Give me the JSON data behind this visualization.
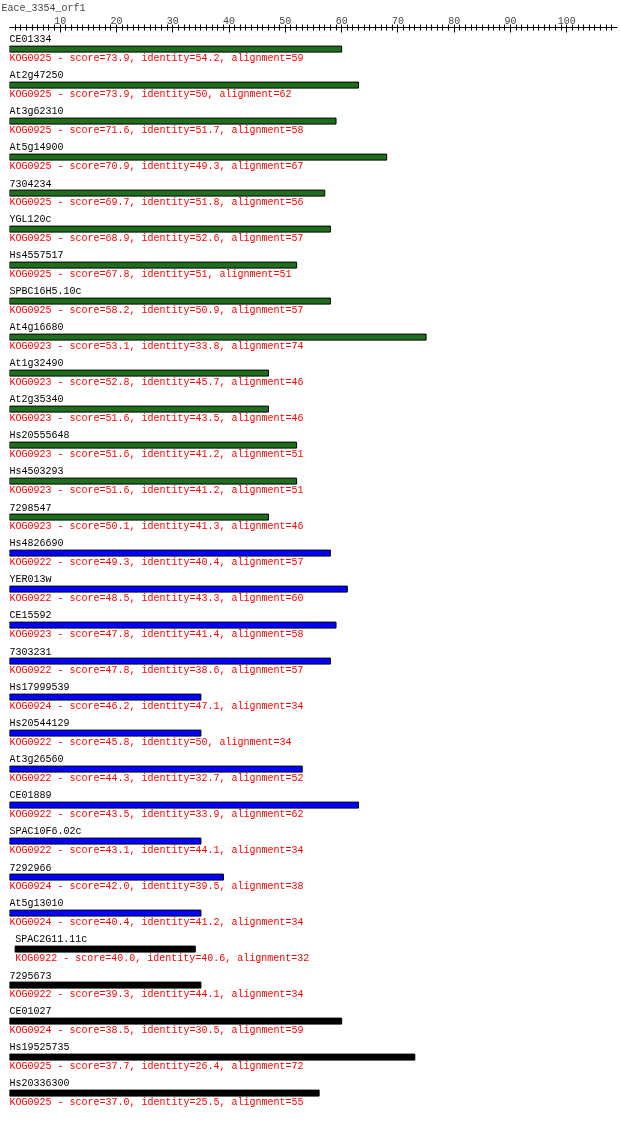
{
  "chart_data": {
    "type": "bar",
    "orientation": "horizontal",
    "title": "Eace_3354_orf1",
    "categories": [
      "CE01334",
      "At2g47250",
      "At3g62310",
      "At5g14900",
      "7304234",
      "YGL120c",
      "Hs4557517",
      "SPBC16H5.10c",
      "At4g16680",
      "At1g32490",
      "At2g35340",
      "Hs20555648",
      "Hs4503293",
      "7298547",
      "Hs4826690",
      "YER013w",
      "CE15592",
      "7303231",
      "Hs17999539",
      "Hs20544129",
      "At3g26560",
      "CE01889",
      "SPAC10F6.02c",
      "7292966",
      "At5g13010",
      "SPAC2G11.11c",
      "7295673",
      "CE01027",
      "Hs19525735",
      "Hs20336300"
    ],
    "base": [
      1,
      1,
      1,
      1,
      1,
      1,
      1,
      1,
      1,
      1,
      1,
      1,
      1,
      1,
      1,
      1,
      1,
      1,
      1,
      1,
      1,
      1,
      1,
      1,
      1,
      2,
      1,
      1,
      1,
      1
    ],
    "values": [
      59,
      62,
      58,
      67,
      56,
      57,
      51,
      57,
      74,
      46,
      46,
      51,
      51,
      46,
      57,
      60,
      58,
      57,
      34,
      34,
      52,
      62,
      34,
      38,
      34,
      32,
      34,
      59,
      72,
      55
    ],
    "colors": [
      "#1e6e1e",
      "#1e6e1e",
      "#1e6e1e",
      "#1e6e1e",
      "#1e6e1e",
      "#1e6e1e",
      "#1e6e1e",
      "#1e6e1e",
      "#1e6e1e",
      "#1e6e1e",
      "#1e6e1e",
      "#1e6e1e",
      "#1e6e1e",
      "#1e6e1e",
      "#0000ff",
      "#0000ff",
      "#0000ff",
      "#0000ff",
      "#0000ff",
      "#0000ff",
      "#0000ff",
      "#0000ff",
      "#0000ff",
      "#0000ff",
      "#0000ff",
      "#000000",
      "#000000",
      "#000000",
      "#000000",
      "#000000"
    ],
    "value_labels": [
      "KOG0925 - score=73.9, identity=54.2, alignment=59",
      "KOG0925 - score=73.9, identity=50, alignment=62",
      "KOG0925 - score=71.6, identity=51.7, alignment=58",
      "KOG0925 - score=70.9, identity=49.3, alignment=67",
      "KOG0925 - score=69.7, identity=51.8, alignment=56",
      "KOG0925 - score=68.9, identity=52.6, alignment=57",
      "KOG0925 - score=67.8, identity=51, alignment=51",
      "KOG0925 - score=58.2, identity=50.9, alignment=57",
      "KOG0923 - score=53.1, identity=33.8, alignment=74",
      "KOG0923 - score=52.8, identity=45.7, alignment=46",
      "KOG0923 - score=51.6, identity=43.5, alignment=46",
      "KOG0923 - score=51.6, identity=41.2, alignment=51",
      "KOG0923 - score=51.6, identity=41.2, alignment=51",
      "KOG0923 - score=50.1, identity=41.3, alignment=46",
      "KOG0922 - score=49.3, identity=40.4, alignment=57",
      "KOG0922 - score=48.5, identity=43.3, alignment=60",
      "KOG0923 - score=47.8, identity=41.4, alignment=58",
      "KOG0922 - score=47.8, identity=38.6, alignment=57",
      "KOG0924 - score=46.2, identity=47.1, alignment=34",
      "KOG0922 - score=45.8, identity=50, alignment=34",
      "KOG0922 - score=44.3, identity=32.7, alignment=52",
      "KOG0922 - score=43.5, identity=33.9, alignment=62",
      "KOG0922 - score=43.1, identity=44.1, alignment=34",
      "KOG0924 - score=42.0, identity=39.5, alignment=38",
      "KOG0924 - score=40.4, identity=41.2, alignment=34",
      "KOG0922 - score=40.0, identity=40.6, alignment=32",
      "KOG0922 - score=39.3, identity=44.1, alignment=34",
      "KOG0924 - score=38.5, identity=30.5, alignment=59",
      "KOG0925 - score=37.7, identity=26.4, alignment=72",
      "KOG0925 - score=37.0, identity=25.5, alignment=55"
    ],
    "xlim": [
      1,
      109
    ],
    "xticks": [
      {
        "value": 2,
        "label": null
      },
      {
        "value": 3,
        "label": null
      },
      {
        "value": 4,
        "label": null
      },
      {
        "value": 5,
        "label": null
      },
      {
        "value": 6,
        "label": null
      },
      {
        "value": 7,
        "label": null
      },
      {
        "value": 8,
        "label": null
      },
      {
        "value": 9,
        "label": null
      },
      10,
      {
        "value": 11,
        "label": null
      },
      {
        "value": 12,
        "label": null
      },
      {
        "value": 13,
        "label": null
      },
      {
        "value": 14,
        "label": null
      },
      {
        "value": 15,
        "label": null
      },
      {
        "value": 16,
        "label": null
      },
      {
        "value": 17,
        "label": null
      },
      {
        "value": 18,
        "label": null
      },
      {
        "value": 19,
        "label": null
      },
      20,
      {
        "value": 21,
        "label": null
      },
      {
        "value": 22,
        "label": null
      },
      {
        "value": 23,
        "label": null
      },
      {
        "value": 24,
        "label": null
      },
      {
        "value": 25,
        "label": null
      },
      {
        "value": 26,
        "label": null
      },
      {
        "value": 27,
        "label": null
      },
      {
        "value": 28,
        "label": null
      },
      {
        "value": 29,
        "label": null
      },
      30,
      {
        "value": 31,
        "label": null
      },
      {
        "value": 32,
        "label": null
      },
      {
        "value": 33,
        "label": null
      },
      {
        "value": 34,
        "label": null
      },
      {
        "value": 35,
        "label": null
      },
      {
        "value": 36,
        "label": null
      },
      {
        "value": 37,
        "label": null
      },
      {
        "value": 38,
        "label": null
      },
      {
        "value": 39,
        "label": null
      },
      40,
      {
        "value": 41,
        "label": null
      },
      {
        "value": 42,
        "label": null
      },
      {
        "value": 43,
        "label": null
      },
      {
        "value": 44,
        "label": null
      },
      {
        "value": 45,
        "label": null
      },
      {
        "value": 46,
        "label": null
      },
      {
        "value": 47,
        "label": null
      },
      {
        "value": 48,
        "label": null
      },
      {
        "value": 49,
        "label": null
      },
      50,
      {
        "value": 51,
        "label": null
      },
      {
        "value": 52,
        "label": null
      },
      {
        "value": 53,
        "label": null
      },
      {
        "value": 54,
        "label": null
      },
      {
        "value": 55,
        "label": null
      },
      {
        "value": 56,
        "label": null
      },
      {
        "value": 57,
        "label": null
      },
      {
        "value": 58,
        "label": null
      },
      {
        "value": 59,
        "label": null
      },
      60,
      {
        "value": 61,
        "label": null
      },
      {
        "value": 62,
        "label": null
      },
      {
        "value": 63,
        "label": null
      },
      {
        "value": 64,
        "label": null
      },
      {
        "value": 65,
        "label": null
      },
      {
        "value": 66,
        "label": null
      },
      {
        "value": 67,
        "label": null
      },
      {
        "value": 68,
        "label": null
      },
      {
        "value": 69,
        "label": null
      },
      70,
      {
        "value": 71,
        "label": null
      },
      {
        "value": 72,
        "label": null
      },
      {
        "value": 73,
        "label": null
      },
      {
        "value": 74,
        "label": null
      },
      {
        "value": 75,
        "label": null
      },
      {
        "value": 76,
        "label": null
      },
      {
        "value": 77,
        "label": null
      },
      {
        "value": 78,
        "label": null
      },
      {
        "value": 79,
        "label": null
      },
      80,
      {
        "value": 81,
        "label": null
      },
      {
        "value": 82,
        "label": null
      },
      {
        "value": 83,
        "label": null
      },
      {
        "value": 84,
        "label": null
      },
      {
        "value": 85,
        "label": null
      },
      {
        "value": 86,
        "label": null
      },
      {
        "value": 87,
        "label": null
      },
      {
        "value": 88,
        "label": null
      },
      {
        "value": 89,
        "label": null
      },
      90,
      {
        "value": 91,
        "label": null
      },
      {
        "value": 92,
        "label": null
      },
      {
        "value": 93,
        "label": null
      },
      {
        "value": 94,
        "label": null
      },
      {
        "value": 95,
        "label": null
      },
      {
        "value": 96,
        "label": null
      },
      {
        "value": 97,
        "label": null
      },
      {
        "value": 98,
        "label": null
      },
      {
        "value": 99,
        "label": null
      },
      100,
      {
        "value": 101,
        "label": null
      },
      {
        "value": 102,
        "label": null
      },
      {
        "value": 103,
        "label": null
      },
      {
        "value": 104,
        "label": null
      },
      {
        "value": 105,
        "label": null
      },
      {
        "value": 106,
        "label": null
      },
      {
        "value": 107,
        "label": null
      },
      {
        "value": 108,
        "label": null
      }
    ]
  }
}
